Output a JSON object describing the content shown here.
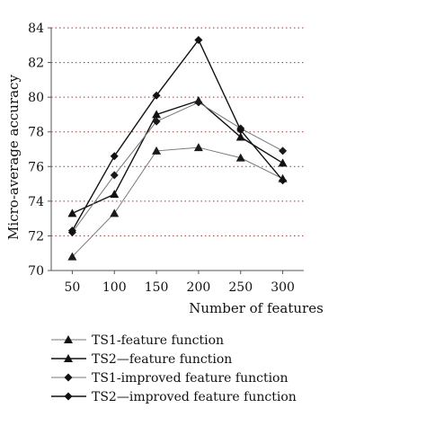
{
  "chart_data": {
    "type": "line",
    "xlabel": "Number of features",
    "ylabel": "Micro-average accuracy",
    "x": [
      50,
      100,
      150,
      200,
      250,
      300
    ],
    "xlim": [
      25,
      325
    ],
    "ylim": [
      70,
      84
    ],
    "yticks": [
      70,
      72,
      74,
      76,
      78,
      80,
      82,
      84
    ],
    "grid": "horizontal dotted",
    "legend_position": "bottom",
    "series": [
      {
        "name": "TS1-feature function",
        "marker": "triangle",
        "color": "#777777",
        "width": 1,
        "values": [
          70.8,
          73.3,
          76.9,
          77.1,
          76.5,
          75.3
        ]
      },
      {
        "name": "TS2—feature function",
        "marker": "triangle",
        "color": "#111111",
        "width": 1.4,
        "values": [
          73.3,
          74.4,
          79.0,
          79.8,
          77.7,
          76.2
        ]
      },
      {
        "name": "TS1-improved feature function",
        "marker": "diamond",
        "color": "#777777",
        "width": 1,
        "values": [
          72.2,
          75.5,
          78.6,
          79.7,
          78.2,
          76.9
        ]
      },
      {
        "name": "TS2—improved feature function",
        "marker": "diamond",
        "color": "#111111",
        "width": 1.4,
        "values": [
          72.3,
          76.6,
          80.1,
          83.3,
          78.1,
          75.2
        ]
      }
    ]
  }
}
